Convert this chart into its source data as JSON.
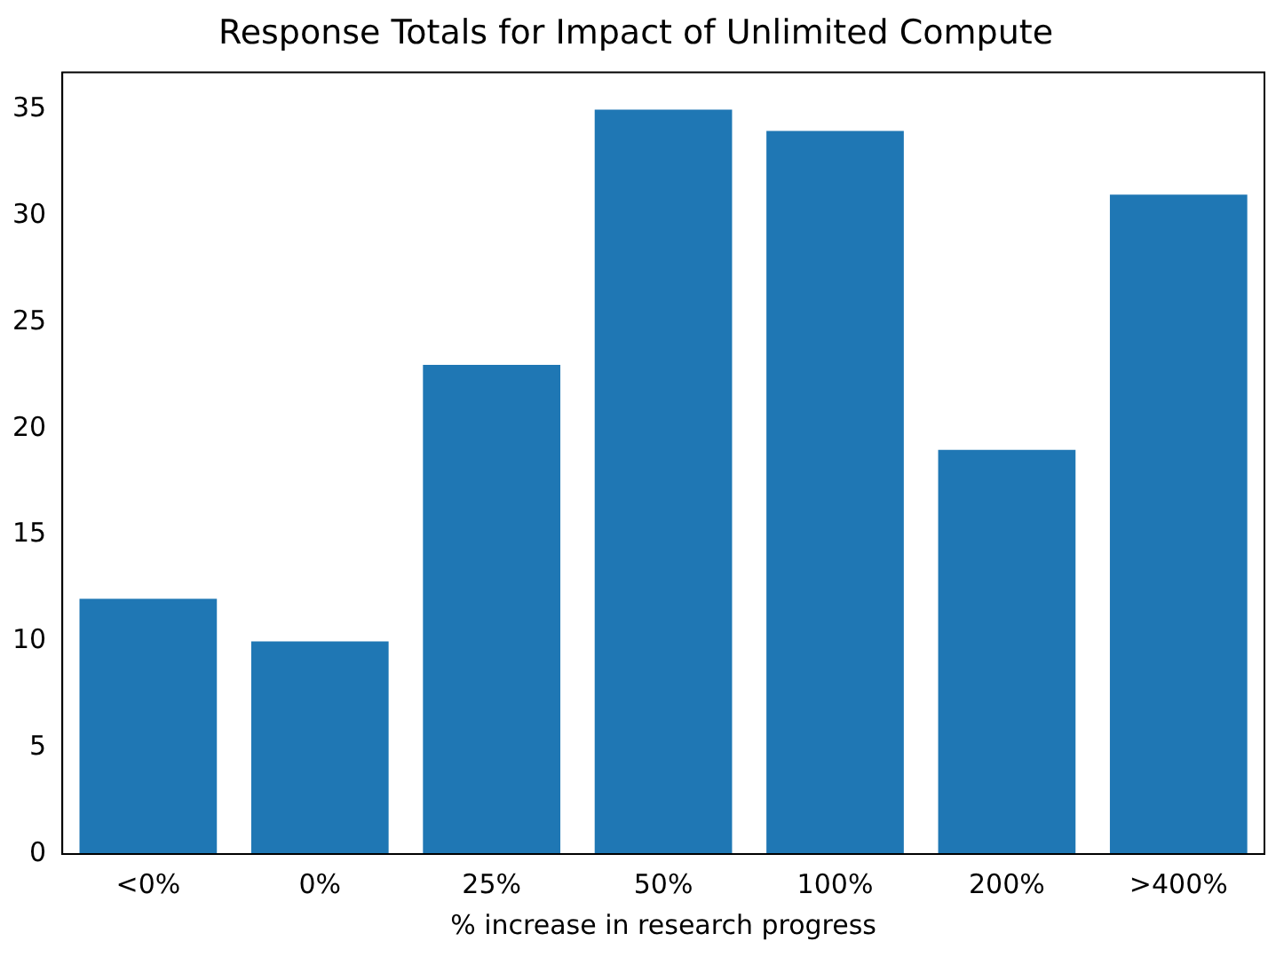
{
  "chart_data": {
    "type": "bar",
    "title": "Response Totals for Impact of Unlimited Compute",
    "xlabel": "% increase in research progress",
    "categories": [
      "<0%",
      "0%",
      "25%",
      "50%",
      "100%",
      "200%",
      ">400%"
    ],
    "values": [
      12,
      10,
      23,
      35,
      34,
      19,
      31
    ],
    "color": "#1f77b4",
    "ylim": [
      0,
      36.75
    ],
    "yticks": [
      0,
      5,
      10,
      15,
      20,
      25,
      30,
      35
    ],
    "grid": false,
    "legend": false
  }
}
